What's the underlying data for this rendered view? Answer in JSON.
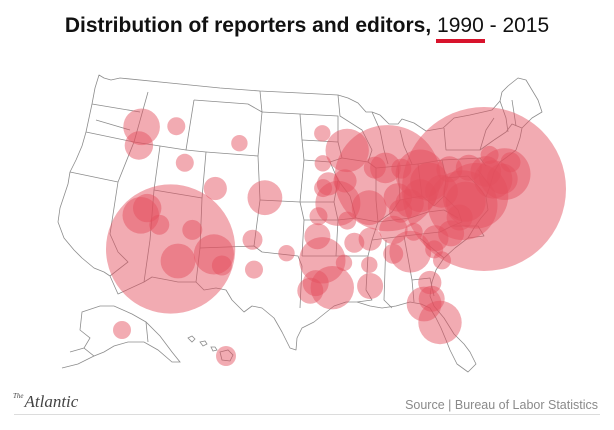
{
  "title": {
    "text": "Distribution of reporters and editors,",
    "year_selected": "1990",
    "separator": " - ",
    "year_other": "2015"
  },
  "map_style": {
    "bubble_fill": "#e3505f",
    "bubble_opacity": 0.48,
    "accent": "#d8132c",
    "border_color": "#8c8c8c"
  },
  "footer": {
    "logo_the": "The",
    "logo_name": "Atlantic",
    "source": "Source | Bureau of Labor Statistics"
  },
  "bubbles": [
    {
      "place": "New York",
      "lon": -74.0,
      "lat": 40.7,
      "relative_size": 1.0
    },
    {
      "place": "Los Angeles",
      "lon": -118.2,
      "lat": 34.05,
      "relative_size": 0.62
    },
    {
      "place": "Chicago",
      "lon": -87.6,
      "lat": 41.9,
      "relative_size": 0.42
    },
    {
      "place": "Washington DC",
      "lon": -77.0,
      "lat": 38.9,
      "relative_size": 0.18
    },
    {
      "place": "Philadelphia",
      "lon": -75.2,
      "lat": 39.95,
      "relative_size": 0.16
    },
    {
      "place": "Boston",
      "lon": -71.1,
      "lat": 42.35,
      "relative_size": 0.1
    },
    {
      "place": "Detroit",
      "lon": -83.0,
      "lat": 42.35,
      "relative_size": 0.09
    },
    {
      "place": "Minneapolis",
      "lon": -93.3,
      "lat": 44.98,
      "relative_size": 0.07
    },
    {
      "place": "Dallas",
      "lon": -96.8,
      "lat": 32.8,
      "relative_size": 0.08
    },
    {
      "place": "Houston",
      "lon": -95.4,
      "lat": 29.76,
      "relative_size": 0.07
    },
    {
      "place": "Kansas City",
      "lon": -94.6,
      "lat": 39.1,
      "relative_size": 0.075
    },
    {
      "place": "Phoenix",
      "lon": -112.1,
      "lat": 33.45,
      "relative_size": 0.06
    },
    {
      "place": "Atlanta",
      "lon": -84.4,
      "lat": 33.75,
      "relative_size": 0.065
    },
    {
      "place": "Miami",
      "lon": -80.2,
      "lat": 25.9,
      "relative_size": 0.07
    },
    {
      "place": "Seattle",
      "lon": -122.3,
      "lat": 47.6,
      "relative_size": 0.05
    },
    {
      "place": "San Francisco",
      "lon": -122.4,
      "lat": 37.78,
      "relative_size": 0.05
    },
    {
      "place": "Denver",
      "lon": -104.9,
      "lat": 39.74,
      "relative_size": 0.045
    },
    {
      "place": "St. Louis",
      "lon": -90.2,
      "lat": 38.63,
      "relative_size": 0.045
    },
    {
      "place": "Cleveland",
      "lon": -81.7,
      "lat": 41.5,
      "relative_size": 0.055
    },
    {
      "place": "Pittsburgh",
      "lon": -80.0,
      "lat": 40.44,
      "relative_size": 0.04
    },
    {
      "place": "Baltimore",
      "lon": -76.6,
      "lat": 39.29,
      "relative_size": 0.06
    },
    {
      "place": "Hartford",
      "lon": -72.7,
      "lat": 41.76,
      "relative_size": 0.055
    },
    {
      "place": "Providence",
      "lon": -71.4,
      "lat": 41.82,
      "relative_size": 0.035
    },
    {
      "place": "Albany",
      "lon": -73.75,
      "lat": 42.65,
      "relative_size": 0.035
    },
    {
      "place": "Syracuse",
      "lon": -76.15,
      "lat": 43.05,
      "relative_size": 0.025
    },
    {
      "place": "Columbus",
      "lon": -83.0,
      "lat": 39.96,
      "relative_size": 0.04
    },
    {
      "place": "Indianapolis",
      "lon": -86.16,
      "lat": 39.77,
      "relative_size": 0.03
    },
    {
      "place": "Milwaukee",
      "lon": -87.9,
      "lat": 43.04,
      "relative_size": 0.035
    },
    {
      "place": "Tampa",
      "lon": -82.45,
      "lat": 27.95,
      "relative_size": 0.045
    },
    {
      "place": "Orlando",
      "lon": -81.38,
      "lat": 28.54,
      "relative_size": 0.025
    },
    {
      "place": "Austin",
      "lon": -97.74,
      "lat": 30.27,
      "relative_size": 0.025
    },
    {
      "place": "San Antonio",
      "lon": -98.5,
      "lat": 29.42,
      "relative_size": 0.025
    },
    {
      "place": "San Diego",
      "lon": -117.16,
      "lat": 32.72,
      "relative_size": 0.045
    },
    {
      "place": "Portland",
      "lon": -122.68,
      "lat": 45.52,
      "relative_size": 0.03
    },
    {
      "place": "Sacramento",
      "lon": -121.5,
      "lat": 38.58,
      "relative_size": 0.03
    },
    {
      "place": "Salt Lake City",
      "lon": -111.9,
      "lat": 40.76,
      "relative_size": 0.02
    },
    {
      "place": "Oklahoma City",
      "lon": -97.5,
      "lat": 35.47,
      "relative_size": 0.025
    },
    {
      "place": "Nashville",
      "lon": -86.78,
      "lat": 36.16,
      "relative_size": 0.03
    },
    {
      "place": "Charlotte",
      "lon": -80.84,
      "lat": 35.23,
      "relative_size": 0.025
    },
    {
      "place": "Raleigh",
      "lon": -78.64,
      "lat": 35.78,
      "relative_size": 0.025
    },
    {
      "place": "Richmond",
      "lon": -77.44,
      "lat": 37.54,
      "relative_size": 0.025
    },
    {
      "place": "New Orleans",
      "lon": -90.07,
      "lat": 29.95,
      "relative_size": 0.025
    },
    {
      "place": "Louisville",
      "lon": -85.76,
      "lat": 38.25,
      "relative_size": 0.02
    },
    {
      "place": "Cincinnati",
      "lon": -84.5,
      "lat": 39.1,
      "relative_size": 0.03
    },
    {
      "place": "Buffalo",
      "lon": -78.88,
      "lat": 42.89,
      "relative_size": 0.025
    },
    {
      "place": "Omaha",
      "lon": -95.94,
      "lat": 41.26,
      "relative_size": 0.02
    },
    {
      "place": "Des Moines",
      "lon": -93.6,
      "lat": 41.6,
      "relative_size": 0.02
    },
    {
      "place": "Albuquerque",
      "lon": -106.65,
      "lat": 35.08,
      "relative_size": 0.015
    },
    {
      "place": "Las Vegas",
      "lon": -115.14,
      "lat": 36.17,
      "relative_size": 0.015
    },
    {
      "place": "Memphis",
      "lon": -90.05,
      "lat": 35.15,
      "relative_size": 0.02
    },
    {
      "place": "Birmingham",
      "lon": -86.8,
      "lat": 33.52,
      "relative_size": 0.015
    },
    {
      "place": "Jacksonville",
      "lon": -81.65,
      "lat": 30.33,
      "relative_size": 0.02
    },
    {
      "place": "Boise",
      "lon": -116.2,
      "lat": 43.6,
      "relative_size": 0.012
    },
    {
      "place": "Spokane",
      "lon": -117.4,
      "lat": 47.66,
      "relative_size": 0.012
    },
    {
      "place": "Tucson",
      "lon": -110.97,
      "lat": 32.22,
      "relative_size": 0.015
    },
    {
      "place": "Little Rock",
      "lon": -92.29,
      "lat": 34.74,
      "relative_size": 0.015
    },
    {
      "place": "Madison",
      "lon": -89.4,
      "lat": 43.07,
      "relative_size": 0.018
    },
    {
      "place": "Grand Rapids",
      "lon": -85.67,
      "lat": 42.96,
      "relative_size": 0.015
    },
    {
      "place": "Wichita",
      "lon": -97.34,
      "lat": 37.69,
      "relative_size": 0.012
    },
    {
      "place": "Lincoln",
      "lon": -96.7,
      "lat": 40.8,
      "relative_size": 0.012
    },
    {
      "place": "Springfield",
      "lon": -93.3,
      "lat": 37.2,
      "relative_size": 0.012
    },
    {
      "place": "Charleston",
      "lon": -79.93,
      "lat": 32.78,
      "relative_size": 0.012
    },
    {
      "place": "Columbia",
      "lon": -81.03,
      "lat": 34.0,
      "relative_size": 0.012
    },
    {
      "place": "Knoxville",
      "lon": -83.92,
      "lat": 35.96,
      "relative_size": 0.012
    },
    {
      "place": "Portland ME",
      "lon": -70.26,
      "lat": 43.66,
      "relative_size": 0.015
    },
    {
      "place": "Burlington",
      "lon": -73.21,
      "lat": 44.48,
      "relative_size": 0.012
    },
    {
      "place": "Fresno",
      "lon": -119.79,
      "lat": 36.74,
      "relative_size": 0.015
    },
    {
      "place": "Billings",
      "lon": -108.5,
      "lat": 45.78,
      "relative_size": 0.01
    },
    {
      "place": "Fargo",
      "lon": -96.8,
      "lat": 46.88,
      "relative_size": 0.01
    },
    {
      "place": "Sioux Falls",
      "lon": -96.73,
      "lat": 43.55,
      "relative_size": 0.01
    },
    {
      "place": "El Paso",
      "lon": -106.44,
      "lat": 31.76,
      "relative_size": 0.012
    },
    {
      "place": "Lubbock",
      "lon": -101.86,
      "lat": 33.58,
      "relative_size": 0.01
    },
    {
      "place": "Shreveport",
      "lon": -93.75,
      "lat": 32.52,
      "relative_size": 0.01
    },
    {
      "place": "Jackson",
      "lon": -90.18,
      "lat": 32.3,
      "relative_size": 0.01
    },
    {
      "place": "Anchorage",
      "lon": -149.9,
      "lat": 61.2,
      "relative_size": 0.012,
      "inset": "alaska"
    },
    {
      "place": "Honolulu",
      "lon": -157.86,
      "lat": 21.3,
      "relative_size": 0.015,
      "inset": "hawaii"
    }
  ]
}
